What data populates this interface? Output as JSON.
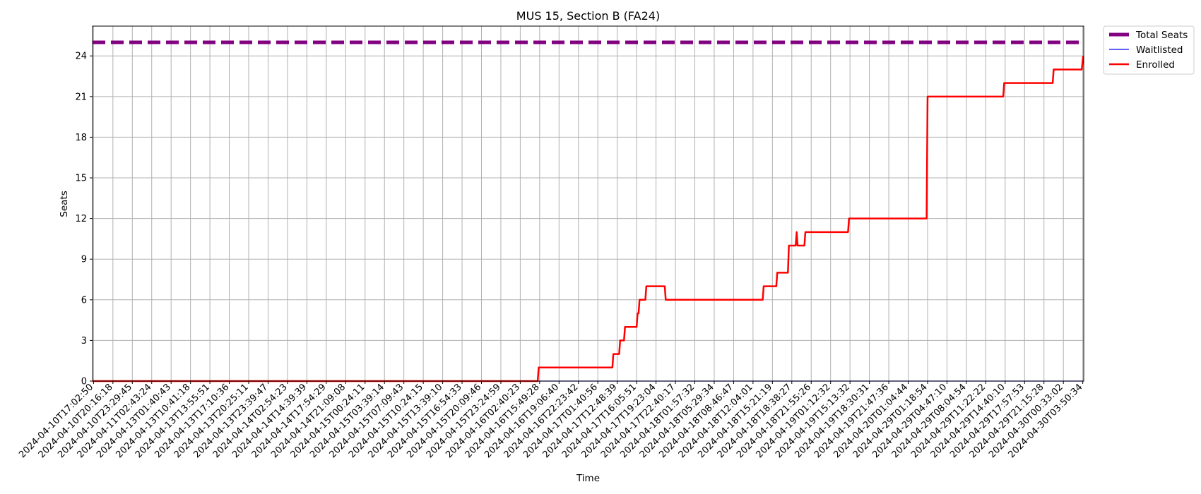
{
  "chart_data": {
    "type": "line",
    "title": "MUS 15, Section B (FA24)",
    "xlabel": "Time",
    "ylabel": "Seats",
    "grid": true,
    "legend_position": "outside-top-right",
    "ylim": [
      0,
      26.2
    ],
    "yticks": [
      0,
      3,
      6,
      9,
      12,
      15,
      18,
      21,
      24
    ],
    "x_ticks": [
      "2024-04-10T17:02:50",
      "2024-04-10T20:16:18",
      "2024-04-10T23:29:45",
      "2024-04-11T02:43:24",
      "2024-04-13T01:40:43",
      "2024-04-13T10:41:18",
      "2024-04-13T13:55:51",
      "2024-04-13T17:10:36",
      "2024-04-13T20:25:11",
      "2024-04-13T23:39:47",
      "2024-04-14T02:54:23",
      "2024-04-14T14:39:39",
      "2024-04-14T17:54:29",
      "2024-04-14T21:09:08",
      "2024-04-15T00:24:11",
      "2024-04-15T03:39:14",
      "2024-04-15T07:09:43",
      "2024-04-15T10:24:15",
      "2024-04-15T13:39:10",
      "2024-04-15T16:54:33",
      "2024-04-15T20:09:46",
      "2024-04-15T23:24:59",
      "2024-04-16T02:40:23",
      "2024-04-16T15:49:28",
      "2024-04-16T19:06:40",
      "2024-04-16T22:23:42",
      "2024-04-17T01:40:56",
      "2024-04-17T12:48:39",
      "2024-04-17T16:05:51",
      "2024-04-17T19:23:04",
      "2024-04-17T22:40:17",
      "2024-04-18T01:57:32",
      "2024-04-18T05:29:34",
      "2024-04-18T08:46:47",
      "2024-04-18T12:04:01",
      "2024-04-18T15:21:19",
      "2024-04-18T18:38:27",
      "2024-04-18T21:55:26",
      "2024-04-19T01:12:32",
      "2024-04-19T15:13:32",
      "2024-04-19T18:30:31",
      "2024-04-19T21:47:36",
      "2024-04-20T01:04:44",
      "2024-04-29T01:18:54",
      "2024-04-29T04:47:10",
      "2024-04-29T08:04:54",
      "2024-04-29T11:22:22",
      "2024-04-29T14:40:10",
      "2024-04-29T17:57:53",
      "2024-04-29T21:15:28",
      "2024-04-30T00:33:02",
      "2024-04-30T03:50:34"
    ],
    "x_range_index": [
      -0.05,
      51.05
    ],
    "series": [
      {
        "name": "Total Seats",
        "color": "#800080",
        "style": "dashed-thick",
        "points": [
          [
            -0.05,
            25
          ],
          [
            51.05,
            25
          ]
        ]
      },
      {
        "name": "Waitlisted",
        "color": "#0000ff",
        "style": "thin",
        "points": [
          [
            -0.05,
            0
          ],
          [
            51.05,
            0
          ]
        ]
      },
      {
        "name": "Enrolled",
        "color": "#ff0000",
        "style": "solid",
        "points": [
          [
            -0.05,
            0
          ],
          [
            22.9,
            0
          ],
          [
            22.95,
            1
          ],
          [
            26.75,
            1
          ],
          [
            26.8,
            2
          ],
          [
            27.1,
            2
          ],
          [
            27.15,
            3
          ],
          [
            27.35,
            3
          ],
          [
            27.4,
            4
          ],
          [
            28.0,
            4
          ],
          [
            28.05,
            5
          ],
          [
            28.1,
            5
          ],
          [
            28.15,
            6
          ],
          [
            28.45,
            6
          ],
          [
            28.5,
            7
          ],
          [
            29.45,
            7
          ],
          [
            29.5,
            6
          ],
          [
            34.5,
            6
          ],
          [
            34.55,
            7
          ],
          [
            35.2,
            7
          ],
          [
            35.25,
            8
          ],
          [
            35.8,
            8
          ],
          [
            35.85,
            10
          ],
          [
            36.2,
            10
          ],
          [
            36.25,
            11
          ],
          [
            36.3,
            10
          ],
          [
            36.65,
            10
          ],
          [
            36.7,
            11
          ],
          [
            38.9,
            11
          ],
          [
            38.95,
            12
          ],
          [
            42.95,
            12
          ],
          [
            43.0,
            21
          ],
          [
            46.9,
            21
          ],
          [
            46.95,
            22
          ],
          [
            49.45,
            22
          ],
          [
            49.5,
            23
          ],
          [
            50.95,
            23
          ],
          [
            51.02,
            24
          ]
        ]
      }
    ]
  }
}
